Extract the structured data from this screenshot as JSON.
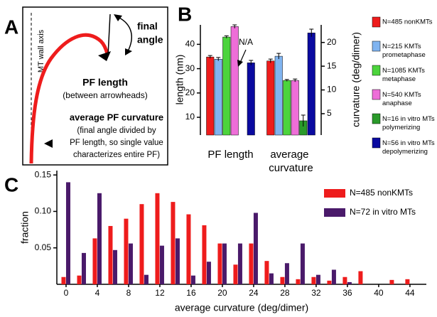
{
  "panel_a": {
    "label": "A",
    "axis_label": "MT wall axis",
    "angle_label": [
      "final",
      "angle"
    ],
    "length_label": "PF length",
    "length_note": "(between arrowheads)",
    "curvature_label": "average PF curvature",
    "curvature_note": [
      "(final angle divided by",
      "PF length, so single value",
      "characterizes entire PF)"
    ]
  },
  "chart_data": [
    {
      "type": "bar",
      "panel_label": "B",
      "categories": [
        "PF length",
        "average curvature"
      ],
      "category_axes": [
        "y",
        "y2"
      ],
      "ylabel": "length (nm)",
      "y2label": "curvature (deg/dimer)",
      "ylim": [
        2.7,
        48
      ],
      "yticks": [
        10,
        20,
        30,
        40
      ],
      "y2lim": [
        0.5,
        23.7
      ],
      "y2ticks": [
        5,
        10,
        15,
        20
      ],
      "annotation": "N/A",
      "series": [
        {
          "name": "N=485 nonKMTs",
          "color": "#ee1c1c",
          "values": [
            34.8,
            16.1
          ],
          "errors": [
            0.6,
            0.4
          ]
        },
        {
          "name": "N=215 KMTs prometaphase",
          "color": "#80b4f0",
          "values": [
            33.9,
            17.1
          ],
          "errors": [
            0.7,
            0.6
          ]
        },
        {
          "name": "N=1085 KMTs metaphase",
          "color": "#4cd43c",
          "values": [
            43.0,
            12.0
          ],
          "errors": [
            0.5,
            0.2
          ]
        },
        {
          "name": "N=540 KMTs anaphase",
          "color": "#ee6ed8",
          "values": [
            47.3,
            12.0
          ],
          "errors": [
            0.7,
            0.3
          ]
        },
        {
          "name": "N=16 in vitro MTs polymerizing",
          "color": "#2a9a2a",
          "values": [
            null,
            3.5
          ],
          "errors": [
            null,
            1.2
          ]
        },
        {
          "name": "N=56 in vitro MTs depolymerizing",
          "color": "#0a0aa0",
          "values": [
            32.4,
            22.0
          ],
          "errors": [
            1.0,
            0.8
          ]
        }
      ]
    },
    {
      "type": "bar",
      "panel_label": "C",
      "xlabel": "average curvature (deg/dimer)",
      "ylabel": "fraction",
      "x": [
        0,
        2,
        4,
        6,
        8,
        10,
        12,
        14,
        16,
        18,
        20,
        22,
        24,
        26,
        28,
        30,
        32,
        34,
        36,
        38,
        40,
        42,
        44
      ],
      "xlim": [
        -1.18,
        46.1
      ],
      "xticks": [
        0,
        4,
        8,
        12,
        16,
        20,
        24,
        28,
        32,
        36,
        40,
        44
      ],
      "ylim": [
        0,
        0.156
      ],
      "yticks": [
        0.05,
        {
          "value": 0.1,
          "label": "0.10"
        },
        0.15
      ],
      "series": [
        {
          "name": "N=485 nonKMTs",
          "color": "#ee1c1c",
          "values": [
            0.01,
            0.012,
            0.063,
            0.08,
            0.09,
            0.11,
            0.125,
            0.113,
            0.096,
            0.081,
            0.056,
            0.027,
            0.056,
            0.032,
            0.01,
            0.007,
            0.01,
            0.005,
            0.01,
            0.018,
            0,
            0.006,
            0.007
          ]
        },
        {
          "name": "N=72 in vitro MTs",
          "color": "#4a1a6a",
          "values": [
            0.14,
            0.043,
            0.125,
            0.047,
            0.056,
            0.013,
            0.053,
            0.063,
            0.012,
            0.031,
            0.056,
            0.056,
            0.098,
            0.015,
            0.029,
            0.056,
            0.013,
            0.02,
            0.003,
            0,
            0,
            0,
            0
          ]
        }
      ]
    }
  ]
}
